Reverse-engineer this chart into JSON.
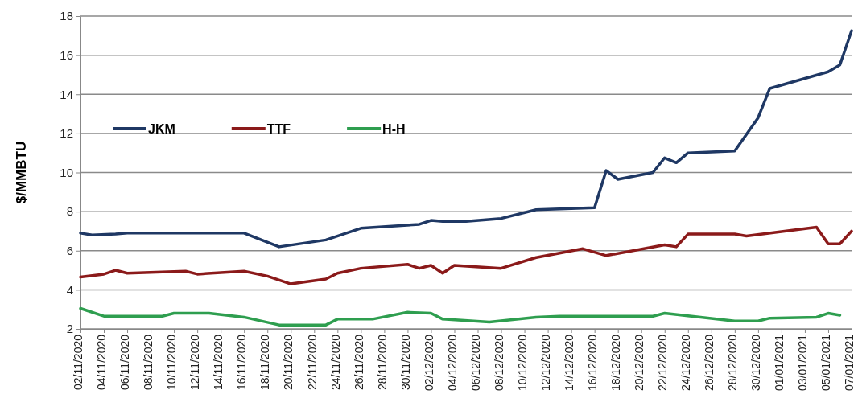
{
  "chart_data": {
    "type": "line",
    "ylabel": "$/MMBTU",
    "ylim": [
      2,
      18
    ],
    "yticks": [
      2,
      4,
      6,
      8,
      10,
      12,
      14,
      16,
      18
    ],
    "grid": "y",
    "legend": "left",
    "xlim": [
      "2020-11-02",
      "2021-01-07"
    ],
    "xticks": [
      {
        "value": "2020-11-02",
        "label": "02/11/2020"
      },
      {
        "value": "2020-11-04",
        "label": "04/11/2020"
      },
      {
        "value": "2020-11-06",
        "label": "06/11/2020"
      },
      {
        "value": "2020-11-08",
        "label": "08/11/2020"
      },
      {
        "value": "2020-11-10",
        "label": "10/11/2020"
      },
      {
        "value": "2020-11-12",
        "label": "12/11/2020"
      },
      {
        "value": "2020-11-14",
        "label": "14/11/2020"
      },
      {
        "value": "2020-11-16",
        "label": "16/11/2020"
      },
      {
        "value": "2020-11-18",
        "label": "18/11/2020"
      },
      {
        "value": "2020-11-20",
        "label": "20/11/2020"
      },
      {
        "value": "2020-11-22",
        "label": "22/11/2020"
      },
      {
        "value": "2020-11-24",
        "label": "24/11/2020"
      },
      {
        "value": "2020-11-26",
        "label": "26/11/2020"
      },
      {
        "value": "2020-11-28",
        "label": "28/11/2020"
      },
      {
        "value": "2020-11-30",
        "label": "30/11/2020"
      },
      {
        "value": "2020-12-02",
        "label": "02/12/2020"
      },
      {
        "value": "2020-12-04",
        "label": "04/12/2020"
      },
      {
        "value": "2020-12-06",
        "label": "06/12/2020"
      },
      {
        "value": "2020-12-08",
        "label": "08/12/2020"
      },
      {
        "value": "2020-12-10",
        "label": "10/12/2020"
      },
      {
        "value": "2020-12-12",
        "label": "12/12/2020"
      },
      {
        "value": "2020-12-14",
        "label": "14/12/2020"
      },
      {
        "value": "2020-12-16",
        "label": "16/12/2020"
      },
      {
        "value": "2020-12-18",
        "label": "18/12/2020"
      },
      {
        "value": "2020-12-20",
        "label": "20/12/2020"
      },
      {
        "value": "2020-12-22",
        "label": "22/12/2020"
      },
      {
        "value": "2020-12-24",
        "label": "24/12/2020"
      },
      {
        "value": "2020-12-26",
        "label": "26/12/2020"
      },
      {
        "value": "2020-12-28",
        "label": "28/12/2020"
      },
      {
        "value": "2020-12-30",
        "label": "30/12/2020"
      },
      {
        "value": "2021-01-01",
        "label": "01/01/2021"
      },
      {
        "value": "2021-01-03",
        "label": "03/01/2021"
      },
      {
        "value": "2021-01-05",
        "label": "05/01/2021"
      },
      {
        "value": "2021-01-07",
        "label": "07/01/2021"
      }
    ],
    "series": [
      {
        "name": "JKM",
        "color": "#1f3864",
        "x": [
          "2020-11-02",
          "2020-11-03",
          "2020-11-05",
          "2020-11-06",
          "2020-11-16",
          "2020-11-19",
          "2020-11-23",
          "2020-11-26",
          "2020-12-01",
          "2020-12-02",
          "2020-12-03",
          "2020-12-05",
          "2020-12-08",
          "2020-12-11",
          "2020-12-16",
          "2020-12-17",
          "2020-12-18",
          "2020-12-21",
          "2020-12-22",
          "2020-12-23",
          "2020-12-24",
          "2020-12-28",
          "2020-12-30",
          "2020-12-31",
          "2021-01-05",
          "2021-01-06",
          "2021-01-07"
        ],
        "values": [
          6.9,
          6.8,
          6.85,
          6.9,
          6.9,
          6.2,
          6.55,
          7.15,
          7.35,
          7.55,
          7.5,
          7.5,
          7.65,
          8.1,
          8.2,
          10.1,
          9.65,
          10.0,
          10.75,
          10.5,
          11.0,
          11.1,
          12.8,
          14.3,
          15.15,
          15.5,
          17.25
        ]
      },
      {
        "name": "TTF",
        "color": "#8b1a1a",
        "x": [
          "2020-11-02",
          "2020-11-04",
          "2020-11-05",
          "2020-11-06",
          "2020-11-11",
          "2020-11-12",
          "2020-11-16",
          "2020-11-18",
          "2020-11-20",
          "2020-11-23",
          "2020-11-24",
          "2020-11-26",
          "2020-11-30",
          "2020-12-01",
          "2020-12-02",
          "2020-12-03",
          "2020-12-04",
          "2020-12-08",
          "2020-12-11",
          "2020-12-15",
          "2020-12-17",
          "2020-12-22",
          "2020-12-23",
          "2020-12-24",
          "2020-12-28",
          "2020-12-29",
          "2021-01-04",
          "2021-01-05",
          "2021-01-06",
          "2021-01-07"
        ],
        "values": [
          4.65,
          4.8,
          5.0,
          4.85,
          4.95,
          4.8,
          4.95,
          4.7,
          4.3,
          4.55,
          4.85,
          5.1,
          5.3,
          5.1,
          5.25,
          4.85,
          5.25,
          5.1,
          5.65,
          6.1,
          5.75,
          6.3,
          6.2,
          6.85,
          6.85,
          6.75,
          7.2,
          6.35,
          6.35,
          7.0
        ]
      },
      {
        "name": "H-H",
        "color": "#2e9e4f",
        "x": [
          "2020-11-02",
          "2020-11-04",
          "2020-11-09",
          "2020-11-10",
          "2020-11-13",
          "2020-11-16",
          "2020-11-19",
          "2020-11-23",
          "2020-11-24",
          "2020-11-27",
          "2020-11-30",
          "2020-12-02",
          "2020-12-03",
          "2020-12-07",
          "2020-12-11",
          "2020-12-13",
          "2020-12-21",
          "2020-12-22",
          "2020-12-28",
          "2020-12-30",
          "2020-12-31",
          "2021-01-04",
          "2021-01-05",
          "2021-01-06"
        ],
        "values": [
          3.05,
          2.65,
          2.65,
          2.8,
          2.8,
          2.6,
          2.2,
          2.2,
          2.5,
          2.5,
          2.85,
          2.8,
          2.5,
          2.35,
          2.6,
          2.65,
          2.65,
          2.8,
          2.4,
          2.4,
          2.55,
          2.6,
          2.8,
          2.7
        ]
      }
    ]
  }
}
